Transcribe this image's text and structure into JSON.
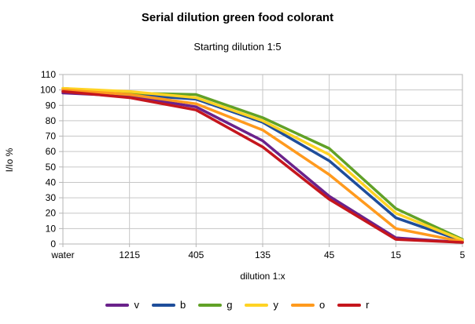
{
  "chart": {
    "title": "Serial dilution green food colorant",
    "subtitle": "Starting dilution 1:5",
    "xlabel": "dilution 1:x",
    "ylabel": "I/Io %"
  },
  "chart_data": {
    "type": "line",
    "title": "Serial dilution green food colorant",
    "subtitle": "Starting dilution 1:5",
    "xlabel": "dilution 1:x",
    "ylabel": "I/Io %",
    "categories": [
      "water",
      "1215",
      "405",
      "135",
      "45",
      "15",
      "5"
    ],
    "series": [
      {
        "name": "v",
        "color": "#6a228b",
        "values": [
          98,
          96,
          89,
          67,
          31,
          4,
          1
        ]
      },
      {
        "name": "b",
        "color": "#1f4e9b",
        "values": [
          99,
          97,
          94,
          79,
          54,
          17,
          2
        ]
      },
      {
        "name": "g",
        "color": "#61a127",
        "values": [
          101,
          98,
          97,
          82,
          62,
          23,
          3
        ]
      },
      {
        "name": "y",
        "color": "#ffd324",
        "values": [
          101,
          99,
          95,
          80,
          58,
          20,
          2.5
        ]
      },
      {
        "name": "o",
        "color": "#ff9a1e",
        "values": [
          100,
          97,
          91,
          74,
          45,
          10,
          1.5
        ]
      },
      {
        "name": "r",
        "color": "#c5161d",
        "values": [
          99,
          95,
          87,
          63,
          29,
          3,
          1
        ]
      }
    ],
    "ylim": [
      0,
      110
    ],
    "ytick_step": 10,
    "grid": true,
    "legend_position": "bottom"
  },
  "style": {
    "grid_color": "#c6c6c6",
    "axis_color": "#b5b5b5",
    "text_color": "#000000",
    "background": "#ffffff"
  }
}
